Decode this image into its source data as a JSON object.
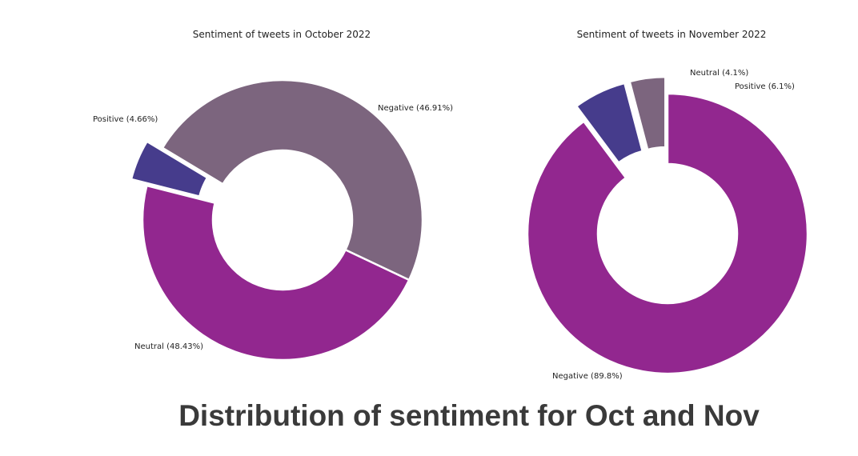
{
  "caption": "Distribution of sentiment for Oct and Nov",
  "colors": {
    "positive": "#463c8c",
    "negative": "#92278f",
    "neutral": "#7c657e"
  },
  "chart_data": [
    {
      "type": "pie",
      "donut": true,
      "title": "Sentiment of tweets in October 2022",
      "start_angle_deg": 149,
      "slices": [
        {
          "name": "Positive",
          "value": 4.66,
          "color": "#463c8c",
          "exploded": true,
          "label": "Positive (4.66%)"
        },
        {
          "name": "Negative",
          "value": 46.91,
          "color": "#92278f",
          "exploded": false,
          "label": "Negative (46.91%)"
        },
        {
          "name": "Neutral",
          "value": 48.43,
          "color": "#7c657e",
          "exploded": false,
          "label": "Neutral (48.43%)"
        }
      ]
    },
    {
      "type": "pie",
      "donut": true,
      "title": "Sentiment of tweets in November 2022",
      "start_angle_deg": 90,
      "slices": [
        {
          "name": "Neutral",
          "value": 4.1,
          "color": "#7c657e",
          "exploded": true,
          "label": "Neutral (4.1%)"
        },
        {
          "name": "Positive",
          "value": 6.1,
          "color": "#463c8c",
          "exploded": true,
          "label": "Positive (6.1%)"
        },
        {
          "name": "Negative",
          "value": 89.8,
          "color": "#92278f",
          "exploded": false,
          "label": "Negative (89.8%)"
        }
      ]
    }
  ]
}
